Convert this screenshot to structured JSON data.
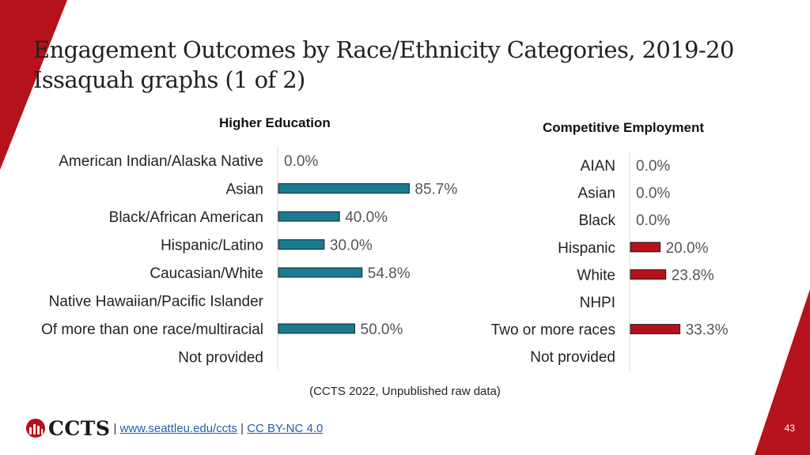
{
  "slide": {
    "title_line1": "Engagement Outcomes by Race/Ethnicity Categories, 2019-20",
    "title_line2": "Issaquah graphs (1 of 2)",
    "source": "(CCTS 2022, Unpublished raw data)",
    "logo_text": "CCTS",
    "link1": "www.seattleu.edu/ccts",
    "separator": "|",
    "link2": "CC BY-NC 4.0",
    "page_number": "43",
    "accent_color": "#b5121b"
  },
  "chart_data": [
    {
      "type": "bar",
      "orientation": "horizontal",
      "title": "Higher Education",
      "categories": [
        "American Indian/Alaska Native",
        "Asian",
        "Black/African American",
        "Hispanic/Latino",
        "Caucasian/White",
        "Native Hawaiian/Pacific Islander",
        "Of more than one race/multiracial",
        "Not provided"
      ],
      "values": [
        0.0,
        85.7,
        40.0,
        30.0,
        54.8,
        null,
        50.0,
        null
      ],
      "labels": [
        "0.0%",
        "85.7%",
        "40.0%",
        "30.0%",
        "54.8%",
        "",
        "50.0%",
        ""
      ],
      "unit": "%",
      "bar_color": "#1a7a91",
      "xlim": [
        0,
        100
      ],
      "grid": false
    },
    {
      "type": "bar",
      "orientation": "horizontal",
      "title": "Competitive Employment",
      "categories": [
        "AIAN",
        "Asian",
        "Black",
        "Hispanic",
        "White",
        "NHPI",
        "Two or more races",
        "Not provided"
      ],
      "values": [
        0.0,
        0.0,
        0.0,
        20.0,
        23.8,
        null,
        33.3,
        null
      ],
      "labels": [
        "0.0%",
        "0.0%",
        "0.0%",
        "20.0%",
        "23.8%",
        "",
        "33.3%",
        ""
      ],
      "unit": "%",
      "bar_color": "#b5121b",
      "xlim": [
        0,
        100
      ],
      "grid": false
    }
  ]
}
